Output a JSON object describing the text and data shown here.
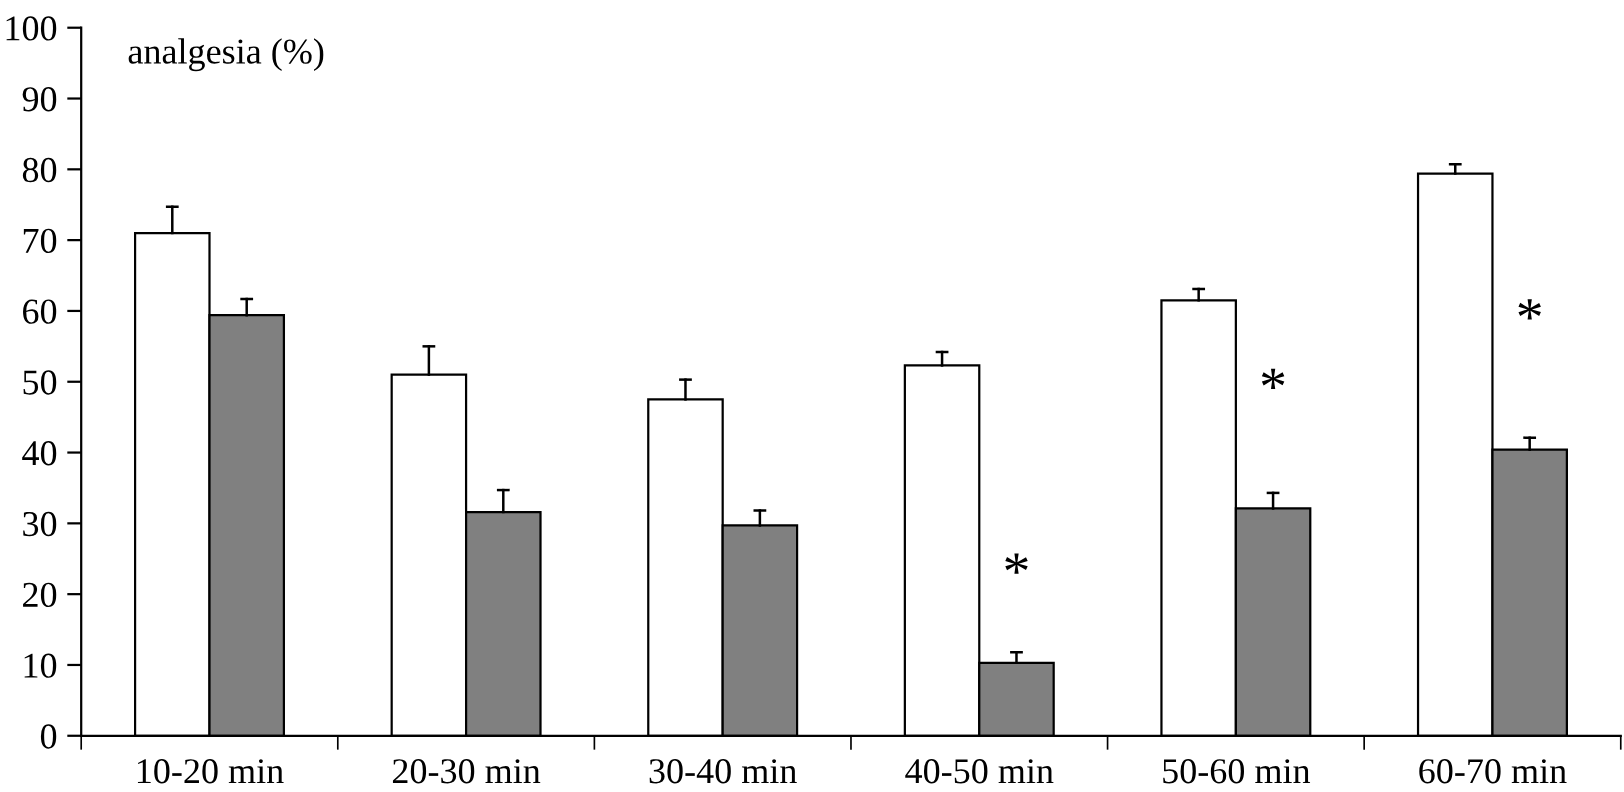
{
  "chart_data": {
    "type": "bar",
    "ylabel": "analgesia (%)",
    "categories": [
      "10-20 min",
      "20-30 min",
      "30-40 min",
      "40-50 min",
      "50-60 min",
      "60-70 min"
    ],
    "series": [
      {
        "color": "#ffffff",
        "values": [
          71.0,
          51.0,
          47.5,
          52.3,
          61.5,
          79.4
        ],
        "errors": [
          [
            71.0,
            74.7
          ],
          [
            51.0,
            55.0
          ],
          [
            47.5,
            50.3
          ],
          [
            52.3,
            54.2
          ],
          [
            61.5,
            63.1
          ],
          [
            79.4,
            80.7
          ]
        ]
      },
      {
        "color": "#808080",
        "values": [
          59.4,
          31.6,
          29.7,
          10.3,
          32.1,
          40.4
        ],
        "errors": [
          [
            59.4,
            61.7
          ],
          [
            31.6,
            34.7
          ],
          [
            29.7,
            31.8
          ],
          [
            10.3,
            11.8
          ],
          [
            32.1,
            34.3
          ],
          [
            40.4,
            42.1
          ]
        ]
      }
    ],
    "annotations": [
      {
        "text": "*",
        "x": "40-50 min",
        "y": 22.5
      },
      {
        "text": "*",
        "x": "50-60 min",
        "y": 48.6
      },
      {
        "text": "*",
        "x": "60-70 min",
        "y": 58.4
      }
    ],
    "ylim": [
      0,
      100
    ],
    "yticks": [
      0,
      10,
      20,
      30,
      40,
      50,
      60,
      70,
      80,
      90,
      100
    ],
    "grid": false
  }
}
